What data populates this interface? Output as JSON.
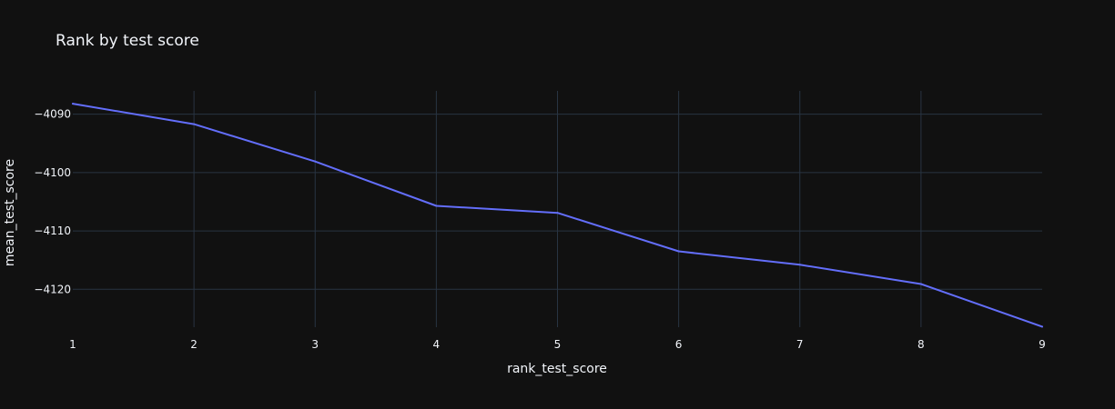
{
  "chart_data": {
    "type": "line",
    "title": "Rank by test score",
    "xlabel": "rank_test_score",
    "ylabel": "mean_test_score",
    "xlim": [
      1,
      9
    ],
    "ylim": [
      -4126.5,
      -4086
    ],
    "x_ticks": [
      1,
      2,
      3,
      4,
      5,
      6,
      7,
      8,
      9
    ],
    "y_ticks": [
      -4090,
      -4100,
      -4110,
      -4120
    ],
    "y_tick_labels": [
      "−4090",
      "−4100",
      "−4110",
      "−4120"
    ],
    "grid": true,
    "series": [
      {
        "color": "#636efa",
        "x": [
          1,
          2,
          3,
          4,
          5,
          6,
          7,
          8,
          9
        ],
        "y": [
          -4088.2,
          -4091.7,
          -4098.1,
          -4105.7,
          -4106.9,
          -4113.5,
          -4115.8,
          -4119.1,
          -4126.4
        ]
      }
    ]
  },
  "colors": {
    "background": "#111111",
    "grid": "#283442",
    "text": "#f2f5fa",
    "series": "#636efa"
  }
}
